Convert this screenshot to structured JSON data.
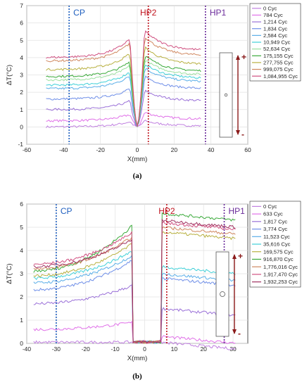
{
  "chart_data": [
    {
      "type": "line",
      "caption": "(a)",
      "xlabel": "X(mm)",
      "ylabel": "ΔT(°C)",
      "xlim": [
        -60,
        60
      ],
      "ylim": [
        -1,
        7
      ],
      "xticks": [
        "-60",
        "-40",
        "-20",
        "0",
        "20",
        "40",
        "60"
      ],
      "yticks": [
        "-1",
        "0",
        "1",
        "2",
        "3",
        "4",
        "5",
        "6",
        "7"
      ],
      "grid": true,
      "legend_position": "right",
      "markers": [
        {
          "label": "CP",
          "x": -37,
          "color": "#1f5fbf"
        },
        {
          "label": "HP2",
          "x": 6,
          "color": "#c0141e"
        },
        {
          "label": "HP1",
          "x": 37,
          "color": "#6a2a9a"
        }
      ],
      "series": [
        {
          "name": "0 Cyc",
          "color": "#c080e0",
          "level": 0.0,
          "right": 0.05
        },
        {
          "name": "784 Cyc",
          "color": "#e070e8",
          "level": 0.35,
          "right": 0.45
        },
        {
          "name": "1,214 Cyc",
          "color": "#9a70d8",
          "level": 1.0,
          "right": 1.5
        },
        {
          "name": "1,834 Cyc",
          "color": "#6f8fe8",
          "level": 1.6,
          "right": 2.2
        },
        {
          "name": "2,584 Cyc",
          "color": "#5aaee8",
          "level": 2.2,
          "right": 2.6
        },
        {
          "name": "10,949 Cyc",
          "color": "#40d0d8",
          "level": 2.4,
          "right": 2.8
        },
        {
          "name": "52,634 Cyc",
          "color": "#9de0a0",
          "level": 2.7,
          "right": 3.0
        },
        {
          "name": "175,155 Cyc",
          "color": "#3aaa3a",
          "level": 2.9,
          "right": 3.2
        },
        {
          "name": "277,755 Cyc",
          "color": "#b8b040",
          "level": 3.3,
          "right": 3.6
        },
        {
          "name": "999,075 Cyc",
          "color": "#d08860",
          "level": 3.8,
          "right": 4.1
        },
        {
          "name": "1,084,955 Cyc",
          "color": "#d05080",
          "level": 4.0,
          "right": 4.4
        }
      ]
    },
    {
      "type": "line",
      "caption": "(b)",
      "xlabel": "X(mm)",
      "ylabel": "ΔT(°C)",
      "xlim": [
        -40,
        35
      ],
      "ylim": [
        0,
        6
      ],
      "xticks": [
        "-40",
        "-30",
        "-20",
        "-10",
        "0",
        "10",
        "20",
        "30"
      ],
      "yticks": [
        "0",
        "1",
        "2",
        "3",
        "4",
        "5",
        "6"
      ],
      "grid": true,
      "legend_position": "right",
      "markers": [
        {
          "label": "CP",
          "x": -30,
          "color": "#1f5fbf"
        },
        {
          "label": "HP2",
          "x": 7.5,
          "color": "#c0141e"
        },
        {
          "label": "HP1",
          "x": 27,
          "color": "#6a2a9a"
        }
      ],
      "series": [
        {
          "name": "0 Cyc",
          "color": "#c080e0",
          "left": 0.05,
          "peak": 0.05,
          "right": 0.05
        },
        {
          "name": "633 Cyc",
          "color": "#e070e8",
          "left": 0.6,
          "peak": 0.9,
          "right": 0.3
        },
        {
          "name": "1,817 Cyc",
          "color": "#9a70d8",
          "left": 1.7,
          "peak": 2.5,
          "right": 1.5
        },
        {
          "name": "3,774 Cyc",
          "color": "#6f8fe8",
          "left": 2.3,
          "peak": 3.6,
          "right": 2.8
        },
        {
          "name": "11,523 Cyc",
          "color": "#5aaee8",
          "left": 2.6,
          "peak": 3.8,
          "right": 3.0
        },
        {
          "name": "35,616 Cyc",
          "color": "#40d0d8",
          "left": 2.8,
          "peak": 4.0,
          "right": 3.3
        },
        {
          "name": "169,575 Cyc",
          "color": "#b8b040",
          "left": 2.9,
          "peak": 4.3,
          "right": 4.8
        },
        {
          "name": "916,870 Cyc",
          "color": "#3aaa3a",
          "left": 3.1,
          "peak": 5.1,
          "right": 5.6
        },
        {
          "name": "1,776,016 Cyc",
          "color": "#d08860",
          "left": 3.2,
          "peak": 4.6,
          "right": 5.0
        },
        {
          "name": "1,917,470 Cyc",
          "color": "#d05080",
          "left": 3.4,
          "peak": 4.8,
          "right": 5.2
        },
        {
          "name": "1,932,253 Cyc",
          "color": "#a03060",
          "left": 3.3,
          "peak": 4.5,
          "right": 5.3
        }
      ]
    }
  ]
}
